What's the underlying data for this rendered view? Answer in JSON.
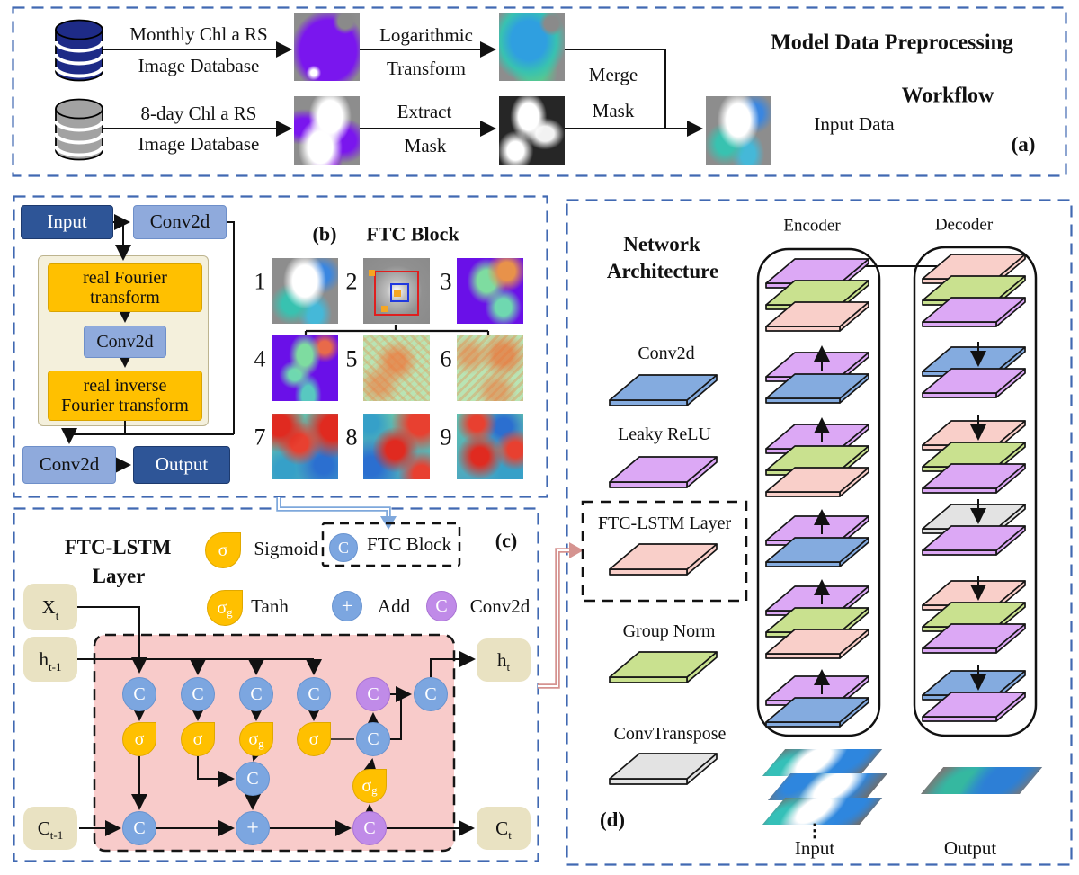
{
  "colors": {
    "panel_border": "#4169B2",
    "dark_blue": "#2E5597",
    "light_blue": "#8FAADC",
    "orange": "#FFC000",
    "pink_bg": "#F8CBCA",
    "blue_node": "#7CA6E0",
    "purple_node": "#C08BE8",
    "layer_purple": "#DCA8F5",
    "layer_green": "#C9E18F",
    "layer_pink": "#F9CFC9",
    "layer_blue": "#84ABDF",
    "layer_gray": "#E3E3E3"
  },
  "panel_a": {
    "label": "(a)",
    "title_line1": "Model Data Preprocessing",
    "title_line2": "Workflow",
    "db_monthly": {
      "line1": "Monthly Chl a RS",
      "line2": "Image Database"
    },
    "db_8day": {
      "line1": "8-day Chl a RS",
      "line2": "Image Database"
    },
    "step_log": {
      "line1": "Logarithmic",
      "line2": "Transform"
    },
    "step_extract": {
      "line1": "Extract",
      "line2": "Mask"
    },
    "merge": {
      "line1": "Merge",
      "line2": "Mask"
    },
    "input_data_label": "Input Data"
  },
  "panel_b": {
    "label": "(b)",
    "title": "FTC Block",
    "input_label": "Input",
    "conv2d_top": "Conv2d",
    "fourier_line1": "real Fourier",
    "fourier_line2": "transform",
    "conv2d_mid": "Conv2d",
    "inv_fourier_line1": "real inverse",
    "inv_fourier_line2": "Fourier transform",
    "conv2d_bottom": "Conv2d",
    "output_label": "Output",
    "grid_numbers": [
      "1",
      "2",
      "3",
      "4",
      "5",
      "6",
      "7",
      "8",
      "9"
    ]
  },
  "panel_c": {
    "label": "(c)",
    "title_line1": "FTC-LSTM",
    "title_line2": "Layer",
    "legend": {
      "sigmoid": "Sigmoid",
      "tanh": "Tanh",
      "ftc_block": "FTC Block",
      "add": "Add",
      "conv2d": "Conv2d"
    },
    "symbols": {
      "sigma": "σ",
      "sigma_g_base": "σ",
      "sigma_g_sub": "g",
      "c": "C",
      "plus": "+"
    },
    "io": {
      "xt": {
        "base": "X",
        "sub": "t"
      },
      "ht_prev": {
        "base": "h",
        "sub": "t-1"
      },
      "ct_prev": {
        "base": "C",
        "sub": "t-1"
      },
      "ht": {
        "base": "h",
        "sub": "t"
      },
      "ct": {
        "base": "C",
        "sub": "t"
      }
    }
  },
  "panel_d": {
    "label": "(d)",
    "title_line1": "Network",
    "title_line2": "Architecture",
    "encoder_label": "Encoder",
    "decoder_label": "Decoder",
    "legend": [
      {
        "key": "conv2d",
        "label": "Conv2d"
      },
      {
        "key": "leaky_relu",
        "label": "Leaky ReLU"
      },
      {
        "key": "ftc_lstm",
        "label": "FTC-LSTM Layer"
      },
      {
        "key": "group_norm",
        "label": "Group Norm"
      },
      {
        "key": "conv_transpose",
        "label": "ConvTranspose"
      }
    ],
    "encoder_stack": [
      [
        "leaky_relu",
        "group_norm",
        "ftc_lstm"
      ],
      [
        "leaky_relu",
        "conv2d"
      ],
      [
        "leaky_relu",
        "group_norm",
        "ftc_lstm"
      ],
      [
        "leaky_relu",
        "conv2d"
      ],
      [
        "leaky_relu",
        "group_norm",
        "ftc_lstm"
      ],
      [
        "leaky_relu",
        "conv2d"
      ]
    ],
    "decoder_stack": [
      [
        "ftc_lstm",
        "group_norm",
        "leaky_relu"
      ],
      [
        "conv2d",
        "leaky_relu"
      ],
      [
        "ftc_lstm",
        "group_norm",
        "leaky_relu"
      ],
      [
        "conv_transpose",
        "leaky_relu"
      ],
      [
        "ftc_lstm",
        "group_norm",
        "leaky_relu"
      ],
      [
        "conv2d",
        "leaky_relu"
      ]
    ],
    "dots": "⋮",
    "input_label": "Input",
    "output_label": "Output"
  }
}
